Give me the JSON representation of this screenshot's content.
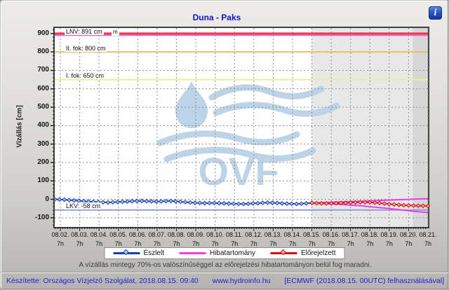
{
  "header": {
    "title": "Duna - Paks",
    "info_icon": "i"
  },
  "note": "A vízállás mintegy 70%-os valószínűséggel az előrejelzési hibatartományon belül fog maradni.",
  "footer": {
    "left": "Készítette: Országos Vízjelző Szolgálat, 2018.08.15. 09:40",
    "center": "www.hydroinfo.hu",
    "right": "[ECMWF (2018.08.15. 00UTC) felhasználásával]"
  },
  "chart_data": {
    "type": "line",
    "title": "Duna - Paks",
    "xlabel": "",
    "ylabel": "Vízállás [cm]",
    "ylim": [
      -150,
      930
    ],
    "yticks": [
      900,
      800,
      700,
      600,
      500,
      400,
      300,
      200,
      100,
      0,
      -100
    ],
    "grid": "dashed",
    "watermark": "OVF",
    "x_axis": {
      "days": [
        "08.02.",
        "08.03.",
        "08.04.",
        "08.05.",
        "08.06.",
        "08.07.",
        "08.08.",
        "08.09.",
        "08.10.",
        "08.11.",
        "08.12.",
        "08.13.",
        "08.14.",
        "08.15.",
        "08.16.",
        "08.17.",
        "08.18.",
        "08.19.",
        "08.20.",
        "08.21."
      ],
      "hour_label": "7h",
      "first_tick_hour": 7,
      "hours_per_day": 24,
      "hours_total": 463
    },
    "regions": [
      {
        "name": "forecast-region",
        "from_hour": 319,
        "to_hour": 463,
        "color": "#e8e8e8"
      },
      {
        "name": "last-segment-region",
        "from_hour": 444,
        "to_hour": 463,
        "color": "#d7d7d7"
      }
    ],
    "thresholds": [
      {
        "name": "iii-fok-line",
        "label": "m",
        "label_clipped": true,
        "value": 900,
        "color": "#ee3a46",
        "width": 3,
        "label_x": 81,
        "label_y": 0.5
      },
      {
        "name": "lnv-line",
        "label": "LNV: 891 cm",
        "value": 891,
        "color": "#e55fd0",
        "width": 2,
        "label_x": 14
      },
      {
        "name": "ii-fok-line",
        "label": "II. fok: 800 cm",
        "value": 800,
        "color": "#e7c06b",
        "width": 2,
        "label_x": 14
      },
      {
        "name": "i-fok-line",
        "label": "I. fok: 650 cm",
        "value": 650,
        "color": "#eeec95",
        "width": 2,
        "label_x": 14
      },
      {
        "name": "lkv-line",
        "label": "LKV: -58 cm",
        "value": -58,
        "color": "#9b9bd9",
        "width": 2,
        "label_x": 14
      }
    ],
    "series": [
      {
        "name": "Észlelt",
        "kind": "observed",
        "color": "#1b3fae",
        "marker_fill": "#a8c8ee",
        "points": [
          [
            0,
            0
          ],
          [
            6,
            -1
          ],
          [
            12,
            -2
          ],
          [
            18,
            -4
          ],
          [
            24,
            -6
          ],
          [
            30,
            -8
          ],
          [
            36,
            -10
          ],
          [
            42,
            -12
          ],
          [
            48,
            -13
          ],
          [
            54,
            -15
          ],
          [
            60,
            -16
          ],
          [
            66,
            -17
          ],
          [
            72,
            -16
          ],
          [
            78,
            -14
          ],
          [
            84,
            -13
          ],
          [
            90,
            -12
          ],
          [
            96,
            -10
          ],
          [
            102,
            -9
          ],
          [
            108,
            -9
          ],
          [
            114,
            -10
          ],
          [
            120,
            -11
          ],
          [
            126,
            -12
          ],
          [
            132,
            -11
          ],
          [
            138,
            -10
          ],
          [
            144,
            -9
          ],
          [
            150,
            -11
          ],
          [
            156,
            -13
          ],
          [
            162,
            -15
          ],
          [
            168,
            -17
          ],
          [
            174,
            -19
          ],
          [
            180,
            -20
          ],
          [
            186,
            -21
          ],
          [
            192,
            -20
          ],
          [
            198,
            -20
          ],
          [
            204,
            -21
          ],
          [
            210,
            -22
          ],
          [
            216,
            -23
          ],
          [
            222,
            -24
          ],
          [
            228,
            -25
          ],
          [
            234,
            -25
          ],
          [
            240,
            -24
          ],
          [
            246,
            -22
          ],
          [
            252,
            -21
          ],
          [
            258,
            -19
          ],
          [
            264,
            -18
          ],
          [
            270,
            -19
          ],
          [
            276,
            -20
          ],
          [
            282,
            -22
          ],
          [
            288,
            -23
          ],
          [
            294,
            -24
          ],
          [
            300,
            -25
          ],
          [
            306,
            -24
          ],
          [
            312,
            -22
          ],
          [
            319,
            -20
          ]
        ]
      },
      {
        "name": "Hibatartomány",
        "kind": "band",
        "color": "#e93ee9",
        "upper": [
          [
            319,
            -20
          ],
          [
            331,
            -18
          ],
          [
            343,
            -16
          ],
          [
            355,
            -14
          ],
          [
            367,
            -12
          ],
          [
            379,
            -10
          ],
          [
            391,
            -8
          ],
          [
            403,
            -6
          ],
          [
            415,
            -4
          ],
          [
            427,
            -2
          ],
          [
            439,
            0
          ],
          [
            451,
            2
          ],
          [
            463,
            3
          ]
        ],
        "lower": [
          [
            319,
            -20
          ],
          [
            331,
            -23
          ],
          [
            343,
            -25
          ],
          [
            355,
            -28
          ],
          [
            367,
            -31
          ],
          [
            379,
            -35
          ],
          [
            391,
            -40
          ],
          [
            403,
            -45
          ],
          [
            415,
            -50
          ],
          [
            427,
            -56
          ],
          [
            439,
            -62
          ],
          [
            451,
            -67
          ],
          [
            463,
            -72
          ]
        ]
      },
      {
        "name": "Előrejelzett",
        "kind": "forecast",
        "color": "#cf1212",
        "marker_fill": "#f2a9a9",
        "points": [
          [
            319,
            -20
          ],
          [
            325,
            -21
          ],
          [
            331,
            -22
          ],
          [
            337,
            -22
          ],
          [
            343,
            -22
          ],
          [
            349,
            -21
          ],
          [
            355,
            -20
          ],
          [
            361,
            -19
          ],
          [
            367,
            -18
          ],
          [
            373,
            -17
          ],
          [
            379,
            -16
          ],
          [
            385,
            -16
          ],
          [
            391,
            -17
          ],
          [
            397,
            -18
          ],
          [
            403,
            -20
          ],
          [
            409,
            -23
          ],
          [
            415,
            -26
          ],
          [
            421,
            -28
          ],
          [
            427,
            -30
          ],
          [
            433,
            -32
          ],
          [
            439,
            -33
          ],
          [
            445,
            -34
          ],
          [
            451,
            -35
          ],
          [
            457,
            -35
          ],
          [
            463,
            -36
          ]
        ]
      }
    ],
    "legend": [
      "Észlelt",
      "Hibatartomány",
      "Előrejelzett"
    ]
  }
}
